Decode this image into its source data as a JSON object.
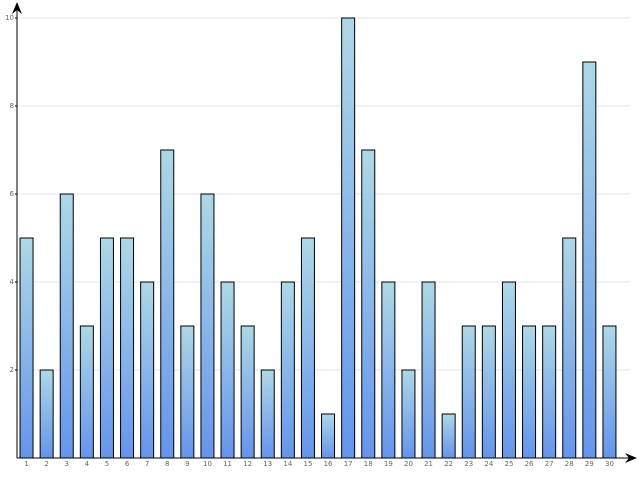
{
  "chart_data": {
    "type": "bar",
    "categories": [
      "1",
      "2",
      "3",
      "4",
      "5",
      "6",
      "7",
      "8",
      "9",
      "10",
      "11",
      "12",
      "13",
      "14",
      "15",
      "16",
      "17",
      "18",
      "19",
      "20",
      "21",
      "22",
      "23",
      "24",
      "25",
      "26",
      "27",
      "28",
      "29",
      "30"
    ],
    "values": [
      5,
      2,
      6,
      3,
      5,
      5,
      4,
      7,
      3,
      6,
      4,
      3,
      2,
      4,
      5,
      1,
      10,
      7,
      4,
      2,
      4,
      1,
      3,
      3,
      4,
      3,
      3,
      5,
      9,
      3
    ],
    "gradient": [
      "#add8e6",
      "#6495ed"
    ],
    "ylim": [
      0,
      10
    ],
    "yticks": [
      2,
      4,
      6,
      8,
      10
    ],
    "grid": true
  }
}
